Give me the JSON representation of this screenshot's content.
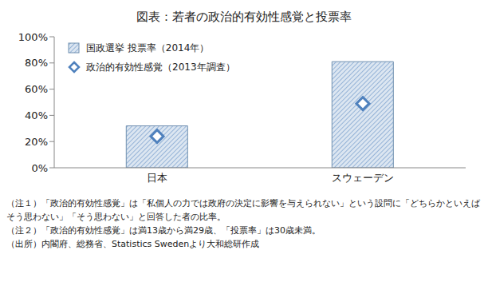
{
  "chart_data": {
    "type": "bar",
    "title": "図表：若者の政治的有効性感覚と投票率",
    "categories": [
      "日本",
      "スウェーデン"
    ],
    "series": [
      {
        "name": "国政選挙 投票率（2014年）",
        "type": "bar",
        "color": "#95b3d7",
        "values": [
          32,
          81
        ]
      },
      {
        "name": "政治的有効性感覚（2013年調査）",
        "type": "scatter",
        "marker": "diamond",
        "color": "#4f81bd",
        "values": [
          24,
          49
        ]
      }
    ],
    "ylim": [
      0,
      100
    ],
    "yticks": [
      {
        "value": 0,
        "label": "0%"
      },
      {
        "value": 20,
        "label": "20%"
      },
      {
        "value": 40,
        "label": "40%"
      },
      {
        "value": 60,
        "label": "60%"
      },
      {
        "value": 80,
        "label": "80%"
      },
      {
        "value": 100,
        "label": "100%"
      }
    ],
    "grid": false,
    "legend": "upper left",
    "annotations": [
      "（注１）「政治的有効性感覚」は「私個人の力では政府の決定に影響を与えられない」という設問に「どちらかといえばそう思わない」「そう思わない」と回答した者の比率。",
      "（注２）「政治的有効性感覚」は満13歳から満29歳、「投票率」は30歳未満。",
      "（出所）内閣府、総務省、Statistics Swedenより大和総研作成"
    ]
  }
}
